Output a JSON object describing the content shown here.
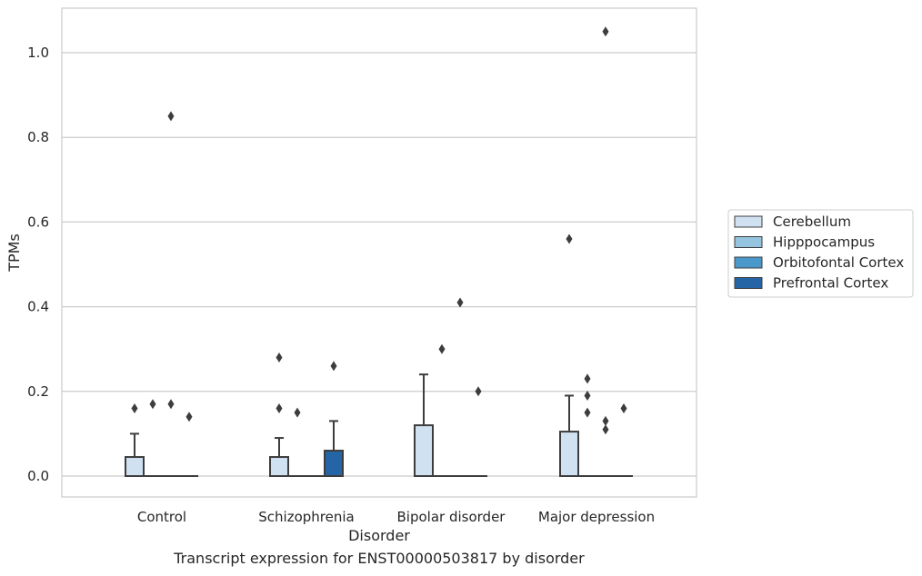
{
  "caption": "Transcript expression for ENST00000503817 by disorder",
  "chart_data": {
    "type": "box",
    "xlabel": "Disorder",
    "ylabel": "TPMs",
    "ylim": [
      -0.05,
      1.1
    ],
    "yticks": [
      0.0,
      0.2,
      0.4,
      0.6,
      0.8,
      1.0
    ],
    "ytick_labels": [
      "0.0",
      "0.2",
      "0.4",
      "0.6",
      "0.8",
      "1.0"
    ],
    "grid": "horizontal",
    "legend_position": "right",
    "categories": [
      "Control",
      "Schizophrenia",
      "Bipolar disorder",
      "Major depression"
    ],
    "series": [
      {
        "name": "Cerebellum",
        "color": "#d0e1f2",
        "boxes": [
          {
            "q1": 0.0,
            "median": 0.0,
            "q3": 0.045,
            "whisker_low": 0.0,
            "whisker_high": 0.1,
            "outliers": [
              0.16
            ]
          },
          {
            "q1": 0.0,
            "median": 0.0,
            "q3": 0.045,
            "whisker_low": 0.0,
            "whisker_high": 0.09,
            "outliers": [
              0.16,
              0.28
            ]
          },
          {
            "q1": 0.0,
            "median": 0.0,
            "q3": 0.12,
            "whisker_low": 0.0,
            "whisker_high": 0.24,
            "outliers": []
          },
          {
            "q1": 0.0,
            "median": 0.0,
            "q3": 0.105,
            "whisker_low": 0.0,
            "whisker_high": 0.19,
            "outliers": [
              0.56
            ]
          }
        ]
      },
      {
        "name": "Hipppocampus",
        "color": "#94c4df",
        "boxes": [
          {
            "q1": 0.0,
            "median": 0.0,
            "q3": 0.0,
            "whisker_low": 0.0,
            "whisker_high": 0.0,
            "outliers": [
              0.17
            ]
          },
          {
            "q1": 0.0,
            "median": 0.0,
            "q3": 0.0,
            "whisker_low": 0.0,
            "whisker_high": 0.0,
            "outliers": [
              0.15
            ]
          },
          {
            "q1": 0.0,
            "median": 0.0,
            "q3": 0.0,
            "whisker_low": 0.0,
            "whisker_high": 0.0,
            "outliers": [
              0.3
            ]
          },
          {
            "q1": 0.0,
            "median": 0.0,
            "q3": 0.0,
            "whisker_low": 0.0,
            "whisker_high": 0.0,
            "outliers": [
              0.15,
              0.19,
              0.23
            ]
          }
        ]
      },
      {
        "name": "Orbitofontal Cortex",
        "color": "#4a98c9",
        "boxes": [
          {
            "q1": 0.0,
            "median": 0.0,
            "q3": 0.0,
            "whisker_low": 0.0,
            "whisker_high": 0.0,
            "outliers": [
              0.17,
              0.85
            ]
          },
          {
            "q1": 0.0,
            "median": 0.0,
            "q3": 0.0,
            "whisker_low": 0.0,
            "whisker_high": 0.0,
            "outliers": []
          },
          {
            "q1": 0.0,
            "median": 0.0,
            "q3": 0.0,
            "whisker_low": 0.0,
            "whisker_high": 0.0,
            "outliers": [
              0.41
            ]
          },
          {
            "q1": 0.0,
            "median": 0.0,
            "q3": 0.0,
            "whisker_low": 0.0,
            "whisker_high": 0.0,
            "outliers": [
              0.11,
              0.13,
              1.05
            ]
          }
        ]
      },
      {
        "name": "Prefrontal Cortex",
        "color": "#2565a6",
        "boxes": [
          {
            "q1": 0.0,
            "median": 0.0,
            "q3": 0.0,
            "whisker_low": 0.0,
            "whisker_high": 0.0,
            "outliers": [
              0.14
            ]
          },
          {
            "q1": 0.0,
            "median": 0.0,
            "q3": 0.06,
            "whisker_low": 0.0,
            "whisker_high": 0.13,
            "outliers": [
              0.26
            ]
          },
          {
            "q1": 0.0,
            "median": 0.0,
            "q3": 0.0,
            "whisker_low": 0.0,
            "whisker_high": 0.0,
            "outliers": [
              0.2
            ]
          },
          {
            "q1": 0.0,
            "median": 0.0,
            "q3": 0.0,
            "whisker_low": 0.0,
            "whisker_high": 0.0,
            "outliers": [
              0.16
            ]
          }
        ]
      }
    ]
  }
}
